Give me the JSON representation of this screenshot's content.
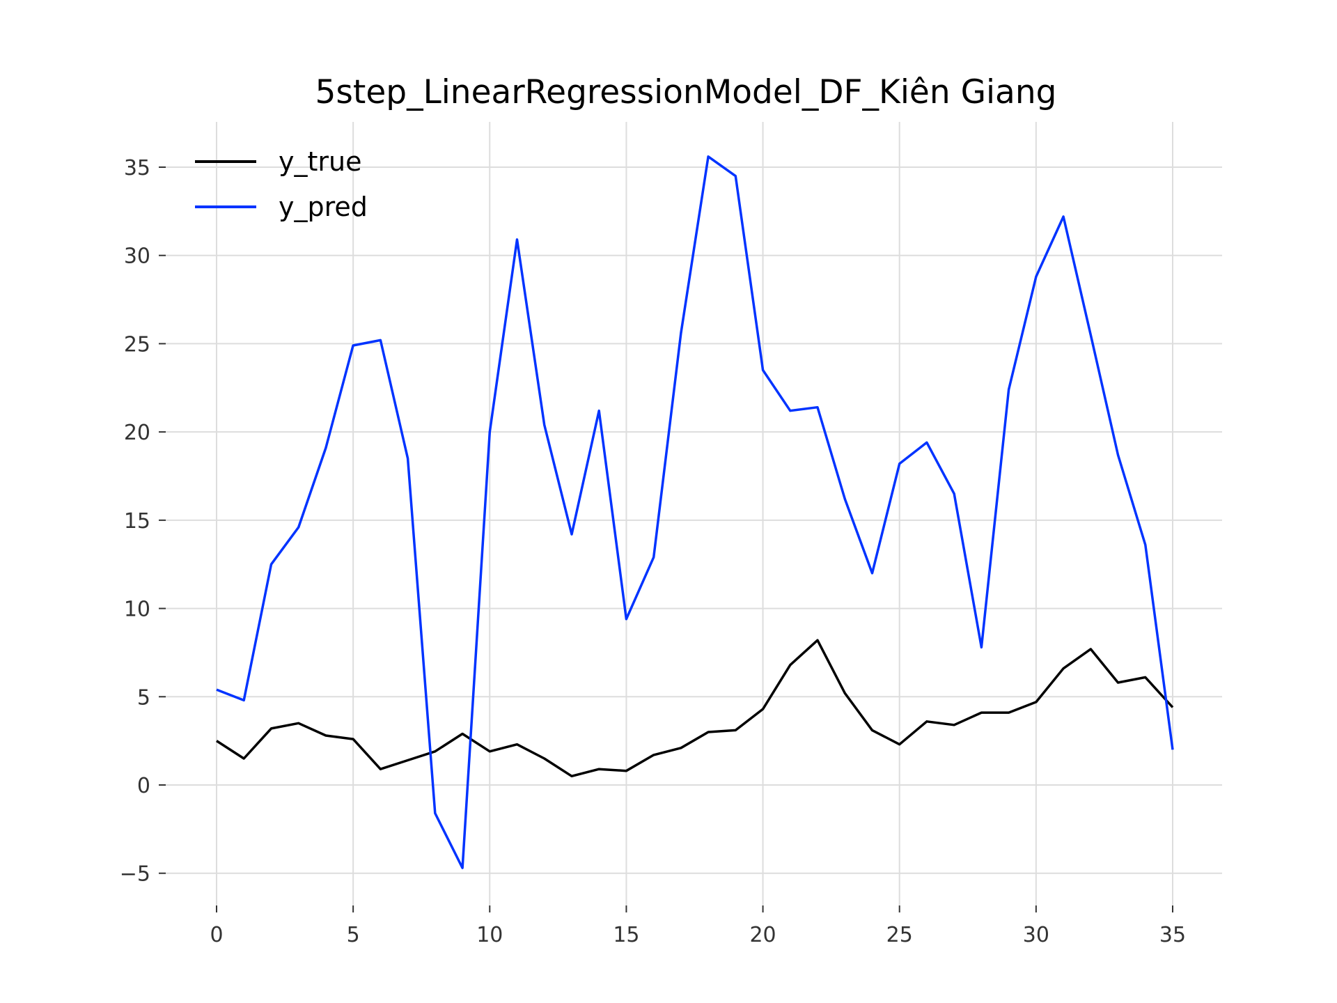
{
  "chart_data": {
    "type": "line",
    "title": "5step_LinearRegressionModel_DF_Kiên Giang",
    "xlabel": "",
    "ylabel": "",
    "xlim": [
      0,
      35
    ],
    "ylim": [
      -6,
      37.5
    ],
    "x_ticks": [
      0,
      5,
      10,
      15,
      20,
      25,
      30,
      35
    ],
    "y_ticks": [
      -5,
      0,
      5,
      10,
      15,
      20,
      25,
      30,
      35
    ],
    "x_tick_labels": [
      "0",
      "5",
      "10",
      "15",
      "20",
      "25",
      "30",
      "35"
    ],
    "y_tick_labels": [
      "−5",
      "0",
      "5",
      "10",
      "15",
      "20",
      "25",
      "30",
      "35"
    ],
    "grid": true,
    "legend_position": "top-left",
    "x": [
      0,
      1,
      2,
      3,
      4,
      5,
      6,
      7,
      8,
      9,
      10,
      11,
      12,
      13,
      14,
      15,
      16,
      17,
      18,
      19,
      20,
      21,
      22,
      23,
      24,
      25,
      26,
      27,
      28,
      29,
      30,
      31,
      32,
      33,
      34,
      35
    ],
    "series": [
      {
        "name": "y_true",
        "color": "#000000",
        "values": [
          2.5,
          1.5,
          3.2,
          3.5,
          2.8,
          2.6,
          0.9,
          1.4,
          1.9,
          2.9,
          1.9,
          2.3,
          1.5,
          0.5,
          0.9,
          0.8,
          1.7,
          2.1,
          3.0,
          3.1,
          4.3,
          6.8,
          8.2,
          5.2,
          3.1,
          2.3,
          3.6,
          3.4,
          4.1,
          4.1,
          4.7,
          6.6,
          7.7,
          5.8,
          6.1,
          4.4
        ]
      },
      {
        "name": "y_pred",
        "color": "#0033ff",
        "values": [
          5.4,
          4.8,
          12.5,
          14.6,
          19.1,
          24.9,
          25.2,
          18.5,
          -1.6,
          -4.7,
          20.0,
          30.9,
          20.4,
          14.2,
          21.2,
          9.4,
          12.9,
          25.6,
          35.6,
          34.5,
          23.5,
          21.2,
          21.4,
          16.2,
          12.0,
          18.2,
          19.4,
          16.5,
          7.8,
          22.4,
          28.8,
          32.2,
          25.5,
          18.7,
          13.6,
          2.0
        ]
      }
    ]
  }
}
